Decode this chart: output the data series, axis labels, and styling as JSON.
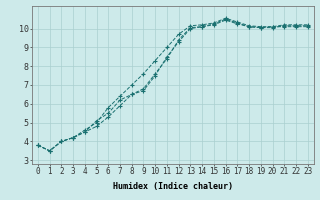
{
  "xlabel": "Humidex (Indice chaleur)",
  "xlim": [
    -0.5,
    23.5
  ],
  "ylim": [
    2.8,
    11.2
  ],
  "yticks": [
    3,
    4,
    5,
    6,
    7,
    8,
    9,
    10
  ],
  "xticks": [
    0,
    1,
    2,
    3,
    4,
    5,
    6,
    7,
    8,
    9,
    10,
    11,
    12,
    13,
    14,
    15,
    16,
    17,
    18,
    19,
    20,
    21,
    22,
    23
  ],
  "background_color": "#cdeaea",
  "grid_color": "#aacfcf",
  "line_color": "#1a7070",
  "series": [
    [
      3.8,
      3.5,
      4.0,
      4.2,
      4.5,
      4.8,
      5.3,
      5.9,
      6.5,
      6.7,
      7.5,
      8.5,
      9.3,
      10.0,
      10.1,
      10.25,
      10.5,
      10.3,
      10.1,
      10.05,
      10.05,
      10.15,
      10.15,
      10.15
    ],
    [
      3.8,
      3.5,
      4.0,
      4.2,
      4.5,
      5.1,
      5.5,
      6.2,
      6.5,
      6.8,
      7.6,
      8.4,
      9.4,
      10.05,
      10.1,
      10.2,
      10.45,
      10.25,
      10.1,
      10.05,
      10.1,
      10.1,
      10.1,
      10.1
    ],
    [
      3.8,
      3.5,
      4.0,
      4.2,
      4.6,
      5.0,
      5.8,
      6.4,
      7.0,
      7.6,
      8.3,
      9.0,
      9.7,
      10.15,
      10.2,
      10.3,
      10.55,
      10.35,
      10.15,
      10.1,
      10.1,
      10.2,
      10.2,
      10.2
    ]
  ],
  "tick_fontsize": 5.5,
  "xlabel_fontsize": 6.0,
  "figsize": [
    3.2,
    2.0
  ],
  "dpi": 100
}
